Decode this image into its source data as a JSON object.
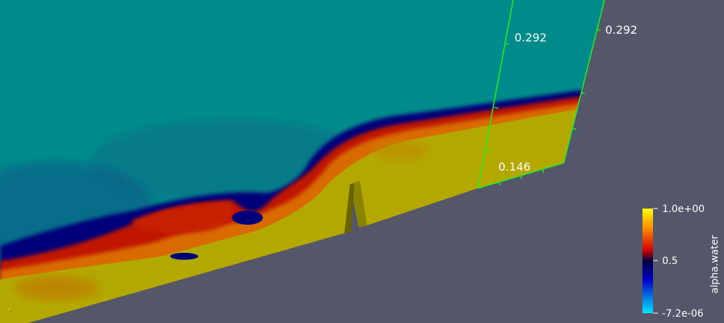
{
  "viewport": {
    "background_color": "#545769"
  },
  "scalar_field": "alpha.water",
  "colormap": {
    "max_label": "1.0e+00",
    "mid_label": "0.5",
    "min_label": "-7.2e-06",
    "colors": [
      "#00e5ff",
      "#0000c8",
      "#000040",
      "#d00000",
      "#ff8000",
      "#ffff00"
    ]
  },
  "ruler_labels": {
    "left_height": "0.292",
    "right_height": "0.292",
    "base_width": "0.146"
  },
  "colors": {
    "air": "#008b8b",
    "water": "#b3a800",
    "interface_dark": "#00007a",
    "interface_red": "#c01800",
    "ruler": "#22ee22"
  }
}
